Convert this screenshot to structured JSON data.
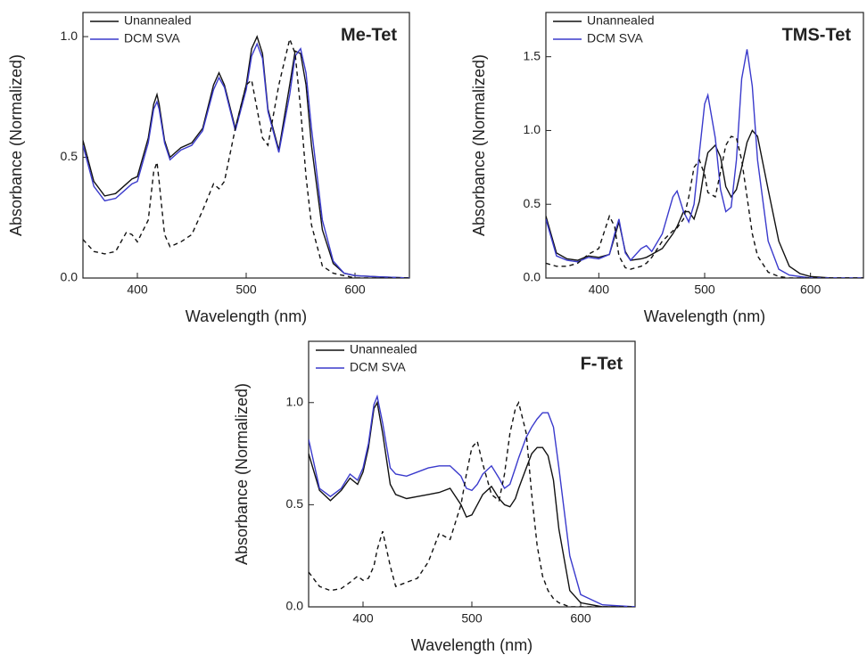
{
  "chart_data": [
    {
      "type": "line",
      "title": "Me-Tet",
      "x_label": "Wavelength (nm)",
      "y_label": "Absorbance (Normalized)",
      "legend": "upper left",
      "xlim": [
        350,
        650
      ],
      "ylim": [
        0,
        1.1
      ],
      "xticks": [
        400,
        500,
        600
      ],
      "yticks": [
        {
          "value": 0,
          "label": "0.0"
        },
        {
          "value": 0.5,
          "label": "0.5"
        },
        {
          "value": 1,
          "label": "1.0"
        }
      ],
      "x": [
        350,
        360,
        370,
        380,
        390,
        395,
        400,
        410,
        415,
        418,
        420,
        425,
        430,
        440,
        450,
        460,
        470,
        475,
        480,
        490,
        500,
        505,
        510,
        515,
        520,
        530,
        540,
        545,
        550,
        555,
        560,
        570,
        580,
        590,
        600,
        620,
        650
      ],
      "series": [
        {
          "name": "Unannealed",
          "color": "#111111",
          "dash": "solid",
          "values": [
            0.57,
            0.4,
            0.34,
            0.35,
            0.39,
            0.41,
            0.42,
            0.58,
            0.72,
            0.76,
            0.72,
            0.57,
            0.5,
            0.54,
            0.56,
            0.62,
            0.8,
            0.85,
            0.8,
            0.62,
            0.8,
            0.95,
            1.0,
            0.93,
            0.7,
            0.53,
            0.8,
            0.94,
            0.93,
            0.8,
            0.55,
            0.2,
            0.06,
            0.02,
            0.01,
            0.005,
            0
          ]
        },
        {
          "name": "DCM SVA",
          "color": "#3a3acc",
          "dash": "solid",
          "values": [
            0.55,
            0.38,
            0.32,
            0.33,
            0.37,
            0.39,
            0.4,
            0.56,
            0.7,
            0.73,
            0.7,
            0.56,
            0.49,
            0.53,
            0.55,
            0.61,
            0.78,
            0.83,
            0.79,
            0.61,
            0.78,
            0.92,
            0.97,
            0.91,
            0.69,
            0.52,
            0.76,
            0.92,
            0.95,
            0.85,
            0.62,
            0.24,
            0.07,
            0.02,
            0.01,
            0.005,
            0
          ]
        },
        {
          "color": "#111111",
          "dash": "dashed",
          "values": [
            0.16,
            0.11,
            0.1,
            0.11,
            0.19,
            0.18,
            0.15,
            0.24,
            0.44,
            0.48,
            0.4,
            0.18,
            0.13,
            0.15,
            0.18,
            0.28,
            0.39,
            0.37,
            0.4,
            0.62,
            0.8,
            0.82,
            0.7,
            0.58,
            0.55,
            0.8,
            0.99,
            0.93,
            0.7,
            0.42,
            0.22,
            0.05,
            0.02,
            0.01,
            0,
            0,
            0
          ]
        }
      ]
    },
    {
      "type": "line",
      "title": "TMS-Tet",
      "x_label": "Wavelength (nm)",
      "y_label": "Absorbance (Normalized)",
      "legend": "upper left",
      "xlim": [
        350,
        650
      ],
      "ylim": [
        0,
        1.8
      ],
      "xticks": [
        400,
        500,
        600
      ],
      "yticks": [
        {
          "value": 0,
          "label": "0.0"
        },
        {
          "value": 0.5,
          "label": "0.5"
        },
        {
          "value": 1,
          "label": "1.0"
        },
        {
          "value": 1.5,
          "label": "1.5"
        }
      ],
      "x": [
        350,
        360,
        370,
        380,
        390,
        400,
        410,
        415,
        419,
        425,
        430,
        440,
        445,
        450,
        460,
        470,
        474,
        480,
        485,
        490,
        495,
        500,
        503,
        510,
        515,
        520,
        525,
        530,
        535,
        540,
        545,
        550,
        560,
        570,
        580,
        590,
        600,
        620,
        650
      ],
      "series": [
        {
          "name": "Unannealed",
          "color": "#111111",
          "dash": "solid",
          "values": [
            0.42,
            0.17,
            0.13,
            0.12,
            0.15,
            0.14,
            0.16,
            0.28,
            0.38,
            0.18,
            0.12,
            0.13,
            0.14,
            0.16,
            0.2,
            0.3,
            0.35,
            0.45,
            0.45,
            0.4,
            0.52,
            0.75,
            0.85,
            0.9,
            0.82,
            0.62,
            0.55,
            0.6,
            0.75,
            0.92,
            1.0,
            0.96,
            0.6,
            0.25,
            0.08,
            0.03,
            0.01,
            0,
            0
          ]
        },
        {
          "name": "DCM SVA",
          "color": "#3a3acc",
          "dash": "solid",
          "values": [
            0.4,
            0.15,
            0.12,
            0.11,
            0.14,
            0.13,
            0.16,
            0.3,
            0.4,
            0.17,
            0.12,
            0.2,
            0.22,
            0.18,
            0.3,
            0.55,
            0.59,
            0.45,
            0.38,
            0.5,
            0.85,
            1.18,
            1.24,
            0.95,
            0.6,
            0.45,
            0.48,
            0.8,
            1.35,
            1.55,
            1.3,
            0.8,
            0.25,
            0.06,
            0.02,
            0.01,
            0,
            0,
            0
          ]
        },
        {
          "color": "#111111",
          "dash": "dashed",
          "values": [
            0.1,
            0.08,
            0.08,
            0.1,
            0.16,
            0.2,
            0.42,
            0.35,
            0.15,
            0.07,
            0.06,
            0.08,
            0.1,
            0.14,
            0.25,
            0.32,
            0.34,
            0.4,
            0.55,
            0.75,
            0.8,
            0.7,
            0.58,
            0.55,
            0.72,
            0.9,
            0.96,
            0.95,
            0.8,
            0.55,
            0.3,
            0.15,
            0.04,
            0.01,
            0,
            0,
            0,
            0,
            0
          ]
        }
      ]
    },
    {
      "type": "line",
      "title": "F-Tet",
      "x_label": "Wavelength (nm)",
      "y_label": "Absorbance (Normalized)",
      "legend": "upper left",
      "xlim": [
        350,
        650
      ],
      "ylim": [
        0,
        1.3
      ],
      "xticks": [
        400,
        500,
        600
      ],
      "yticks": [
        {
          "value": 0,
          "label": "0.0"
        },
        {
          "value": 0.5,
          "label": "0.5"
        },
        {
          "value": 1,
          "label": "1.0"
        }
      ],
      "x": [
        350,
        360,
        370,
        380,
        388,
        395,
        400,
        405,
        410,
        413,
        418,
        425,
        430,
        440,
        450,
        460,
        470,
        480,
        490,
        495,
        500,
        505,
        510,
        518,
        525,
        530,
        535,
        540,
        543,
        550,
        555,
        560,
        565,
        570,
        575,
        580,
        590,
        600,
        620,
        650
      ],
      "series": [
        {
          "name": "Unannealed",
          "color": "#111111",
          "dash": "solid",
          "values": [
            0.75,
            0.57,
            0.52,
            0.57,
            0.63,
            0.6,
            0.66,
            0.78,
            0.97,
            1.0,
            0.85,
            0.6,
            0.55,
            0.53,
            0.54,
            0.55,
            0.56,
            0.58,
            0.5,
            0.44,
            0.45,
            0.5,
            0.55,
            0.59,
            0.53,
            0.5,
            0.49,
            0.53,
            0.58,
            0.68,
            0.75,
            0.78,
            0.78,
            0.74,
            0.62,
            0.38,
            0.08,
            0.02,
            0,
            0
          ]
        },
        {
          "name": "DCM SVA",
          "color": "#3a3acc",
          "dash": "solid",
          "values": [
            0.82,
            0.58,
            0.54,
            0.58,
            0.65,
            0.62,
            0.68,
            0.8,
            0.99,
            1.03,
            0.9,
            0.68,
            0.65,
            0.64,
            0.66,
            0.68,
            0.69,
            0.69,
            0.64,
            0.58,
            0.57,
            0.6,
            0.65,
            0.69,
            0.63,
            0.58,
            0.6,
            0.68,
            0.73,
            0.83,
            0.88,
            0.92,
            0.95,
            0.95,
            0.88,
            0.68,
            0.25,
            0.06,
            0.01,
            0
          ]
        },
        {
          "color": "#111111",
          "dash": "dashed",
          "values": [
            0.17,
            0.1,
            0.08,
            0.09,
            0.12,
            0.15,
            0.13,
            0.14,
            0.2,
            0.28,
            0.37,
            0.2,
            0.1,
            0.12,
            0.14,
            0.22,
            0.36,
            0.33,
            0.5,
            0.65,
            0.78,
            0.81,
            0.7,
            0.55,
            0.52,
            0.65,
            0.85,
            0.97,
            1.0,
            0.85,
            0.55,
            0.3,
            0.15,
            0.08,
            0.04,
            0.02,
            0,
            0,
            0,
            0
          ]
        }
      ]
    }
  ]
}
